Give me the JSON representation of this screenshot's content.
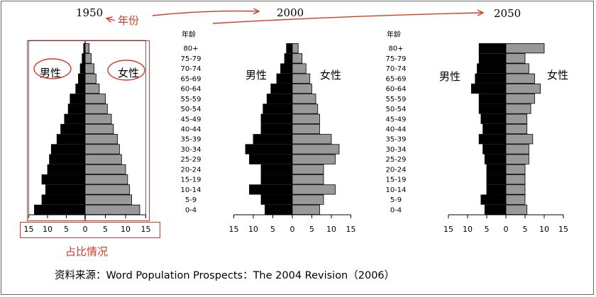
{
  "annotations": {
    "year_label": "年份",
    "share_label": "占比情况",
    "source": "资料来源：Word Population Prospects：The 2004 Revision（2006）",
    "red_color": "#d23a2a"
  },
  "chart_data": {
    "type": "bar",
    "subtype": "population-pyramid",
    "age_header": "年龄",
    "age_groups": [
      "0-4",
      "5-9",
      "10-14",
      "15-19",
      "20-24",
      "25-29",
      "30-34",
      "35-39",
      "40-44",
      "45-49",
      "50-54",
      "55-59",
      "60-64",
      "65-69",
      "70-74",
      "75-79",
      "80+"
    ],
    "x_ticks": [
      "15",
      "10",
      "5",
      "0",
      "5",
      "10",
      "15"
    ],
    "xlim": [
      -15,
      15
    ],
    "male_color": "#000000",
    "female_color": "#999999",
    "panels": [
      {
        "year": "1950",
        "male_label": "男性",
        "female_label": "女性",
        "series": [
          {
            "name": "男性",
            "values": [
              13.5,
              11.5,
              10.5,
              11.5,
              10,
              9.5,
              9,
              7.5,
              6.5,
              5.5,
              4.5,
              4,
              2.5,
              1.8,
              1.3,
              0.8,
              0.4
            ]
          },
          {
            "name": "女性",
            "values": [
              13.5,
              11.5,
              11,
              10.5,
              10,
              9,
              8.5,
              8,
              7,
              6.5,
              5.5,
              5,
              3.5,
              2.7,
              2.2,
              1.5,
              1
            ]
          }
        ]
      },
      {
        "year": "2000",
        "male_label": "男性",
        "female_label": "女性",
        "series": [
          {
            "name": "男性",
            "values": [
              7,
              8,
              11,
              8,
              8,
              11,
              12,
              10,
              8,
              8,
              7.5,
              6.5,
              5.5,
              4,
              3,
              2,
              1.5
            ]
          },
          {
            "name": "女性",
            "values": [
              7,
              8,
              11,
              8,
              8,
              11,
              12,
              10,
              7,
              7,
              6.5,
              6,
              5,
              4.5,
              3.5,
              2.5,
              1.5
            ]
          }
        ]
      },
      {
        "year": "2050",
        "male_label": "男性",
        "female_label": "女性",
        "series": [
          {
            "name": "男性",
            "values": [
              5.5,
              6.5,
              5,
              5,
              5,
              5.5,
              6,
              7,
              6,
              6.5,
              7,
              7,
              9,
              8,
              7.5,
              7,
              7
            ]
          },
          {
            "name": "女性",
            "values": [
              5.5,
              5,
              5,
              5,
              5,
              6,
              6,
              7,
              5.5,
              5.5,
              6.5,
              7.5,
              9,
              7.5,
              6,
              5,
              10
            ]
          }
        ]
      }
    ]
  }
}
